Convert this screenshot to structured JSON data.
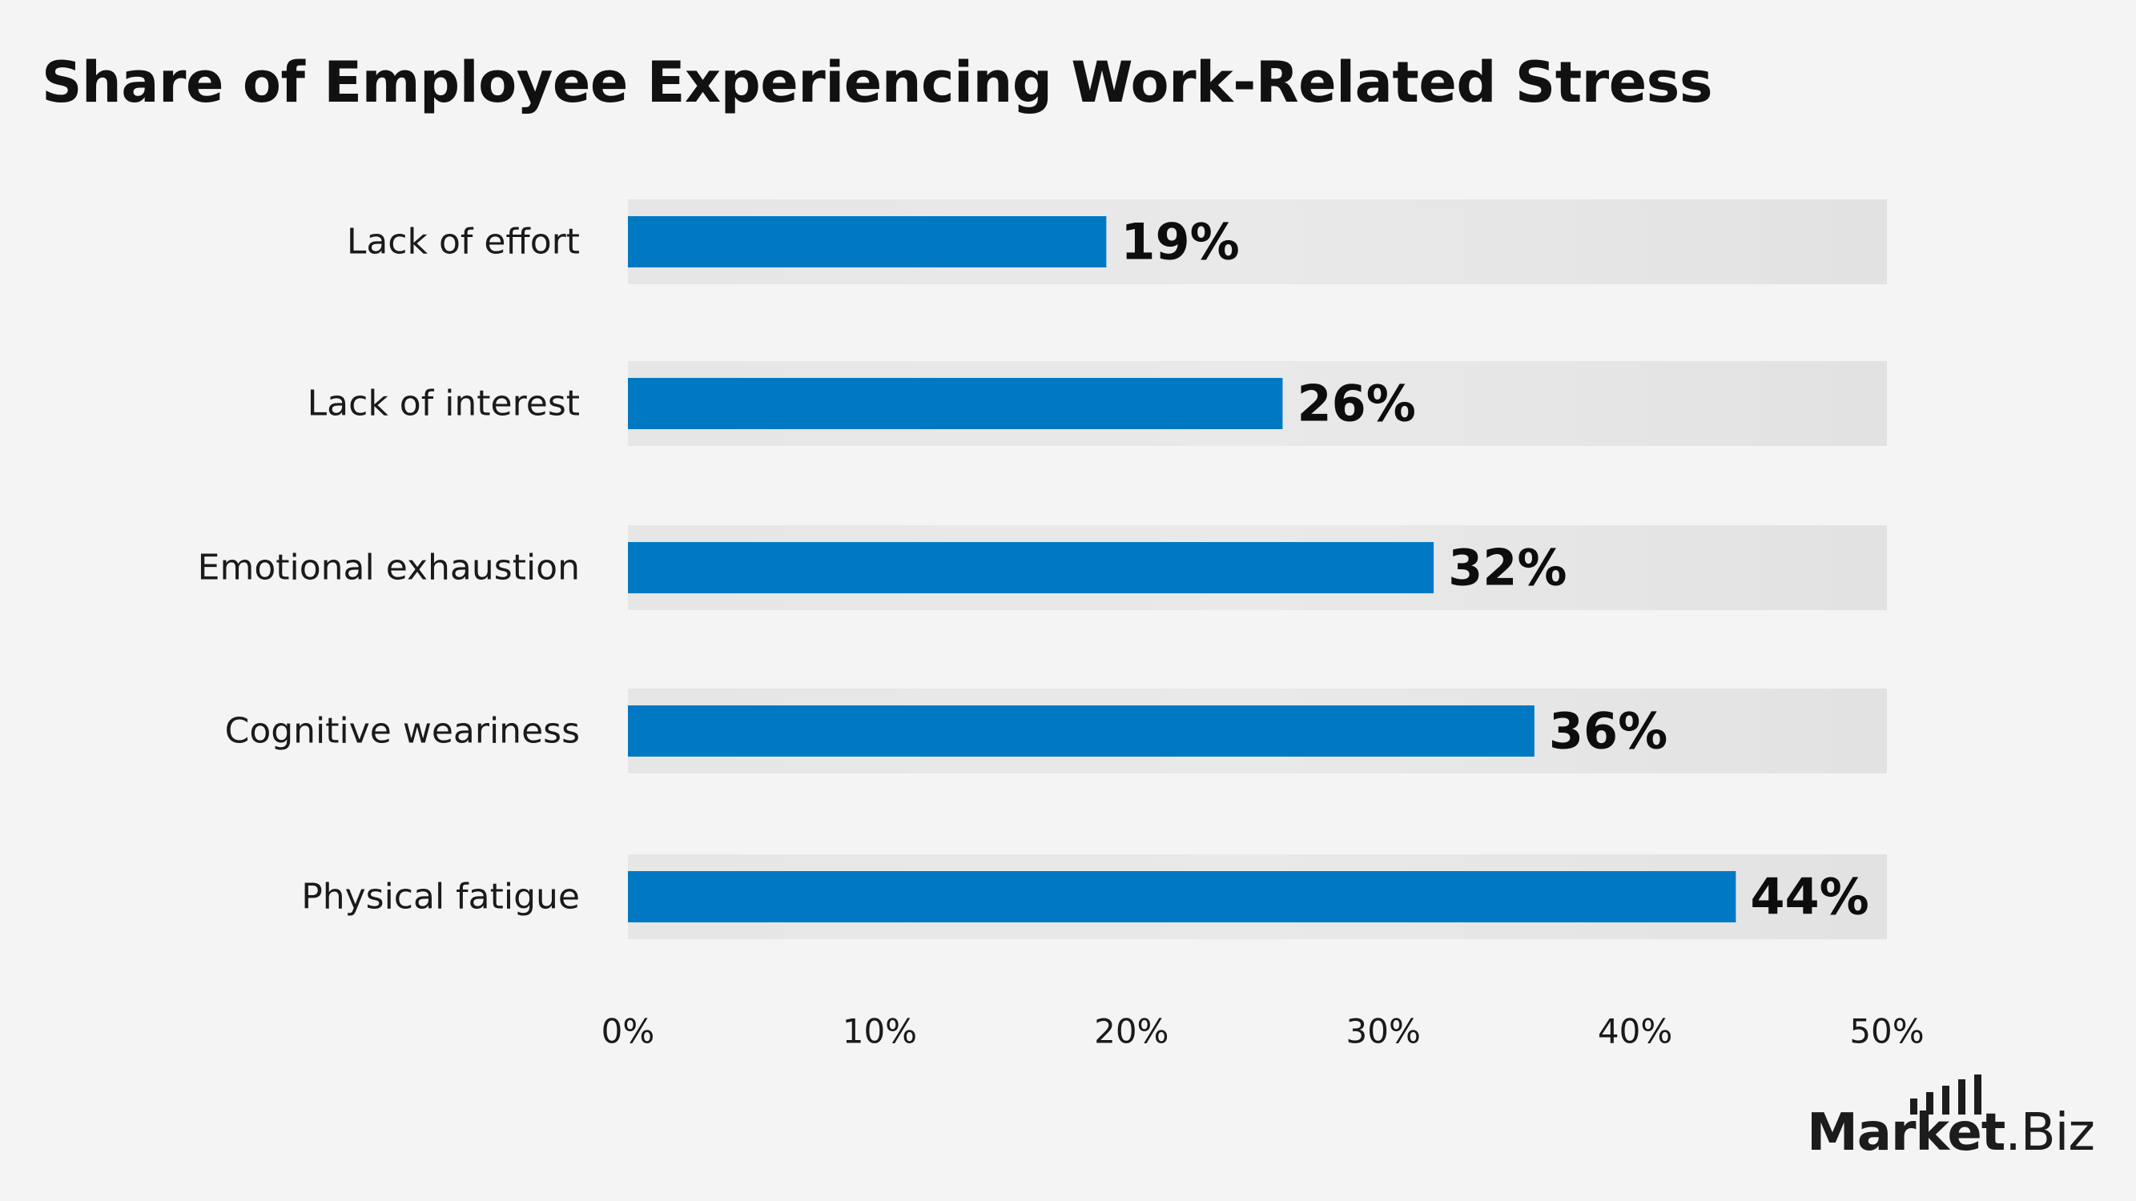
{
  "chart_data": {
    "type": "bar",
    "orientation": "horizontal",
    "title": "Share of Employee Experiencing Work-Related Stress",
    "categories": [
      "Lack of effort",
      "Lack of interest",
      "Emotional exhaustion",
      "Cognitive weariness",
      "Physical fatigue"
    ],
    "values": [
      19,
      26,
      32,
      36,
      44
    ],
    "value_labels": [
      "19%",
      "26%",
      "32%",
      "36%",
      "44%"
    ],
    "xlim": [
      0,
      50
    ],
    "x_ticks": [
      0,
      10,
      20,
      30,
      40,
      50
    ],
    "x_tick_labels": [
      "0%",
      "10%",
      "20%",
      "30%",
      "40%",
      "50%"
    ],
    "xlabel": "",
    "ylabel": "",
    "grid": false,
    "legend": "none"
  },
  "colors": {
    "bar": "#0079c2",
    "track": "#e3e3e3",
    "background": "#f4f4f4",
    "text": "#111111"
  },
  "branding": {
    "logo_main": "Market",
    "logo_suffix": ".Biz",
    "logo_icon": "bar-chart-icon"
  }
}
